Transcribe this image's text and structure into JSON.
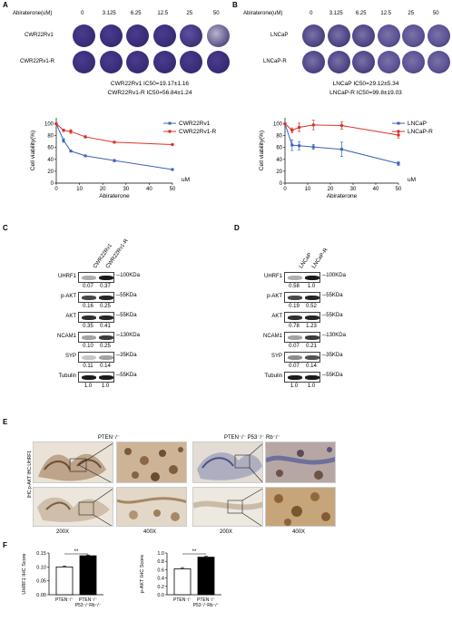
{
  "panelA": {
    "label": "A",
    "drug_header": "Abiraterone(uM)",
    "concentrations": [
      "0",
      "3.125",
      "6.25",
      "12.5",
      "25",
      "50"
    ],
    "rows": [
      "CWR22Rv1",
      "CWR22Rv1-R"
    ],
    "ic50_lines": [
      "CWR22Rv1  IC50=19.17±1.16",
      "CWR22Rv1-R IC50=56.84±1.24"
    ]
  },
  "panelB": {
    "label": "B",
    "drug_header": "Abiraterone(uM)",
    "concentrations": [
      "0",
      "3.125",
      "6.25",
      "12.5",
      "25",
      "50"
    ],
    "rows": [
      "LNCaP",
      "LNCaP-R"
    ],
    "ic50_lines": [
      "LNCaP  IC50=29.12±5.34",
      "LNCaP-R IC50=99.8±19.03"
    ]
  },
  "chart_data": [
    {
      "type": "line",
      "xlabel": "Abiraterone",
      "ylabel": "Cell viability(%)",
      "x_unit": "uM",
      "xlim": [
        0,
        50
      ],
      "ylim": [
        0,
        110
      ],
      "xticks": [
        "0",
        "10",
        "20",
        "30",
        "40",
        "50"
      ],
      "yticks": [
        "0",
        "20",
        "40",
        "60",
        "80",
        "100"
      ],
      "legend_position": "top-right",
      "series": [
        {
          "name": "CWR22Rv1",
          "color": "#3a63b8",
          "marker": "square",
          "x": [
            0,
            3.125,
            6.25,
            12.5,
            25,
            50
          ],
          "y": [
            100,
            72,
            54,
            46,
            38,
            23
          ],
          "err": [
            0,
            3,
            1,
            1,
            2,
            1
          ]
        },
        {
          "name": "CWR22Rv1-R",
          "color": "#d8322a",
          "marker": "circle",
          "x": [
            0,
            3.125,
            6.25,
            12.5,
            25,
            50
          ],
          "y": [
            100,
            89,
            87,
            78,
            69,
            65
          ],
          "err": [
            0,
            2,
            3,
            2,
            1,
            1
          ]
        }
      ]
    },
    {
      "type": "line",
      "xlabel": "Abiraterone",
      "ylabel": "Cell viability(%)",
      "x_unit": "uM",
      "xlim": [
        0,
        50
      ],
      "ylim": [
        0,
        110
      ],
      "xticks": [
        "0",
        "10",
        "20",
        "30",
        "40",
        "50"
      ],
      "yticks": [
        "0",
        "20",
        "40",
        "60",
        "80",
        "100"
      ],
      "legend_position": "top-right",
      "series": [
        {
          "name": "LNCaP",
          "color": "#3a63b8",
          "marker": "square",
          "x": [
            0,
            3.125,
            6.25,
            12.5,
            25,
            50
          ],
          "y": [
            100,
            64,
            63,
            61,
            57,
            33
          ],
          "err": [
            0,
            9,
            7,
            4,
            12,
            3
          ]
        },
        {
          "name": "LNCaP-R",
          "color": "#d8322a",
          "marker": "circle",
          "x": [
            0,
            3.125,
            6.25,
            12.5,
            25,
            50
          ],
          "y": [
            100,
            89,
            94,
            98,
            97,
            81
          ],
          "err": [
            0,
            4,
            7,
            8,
            6,
            5
          ]
        }
      ]
    },
    {
      "type": "bar",
      "ylabel": "UHRF1 IHC Score",
      "categories": [
        "PTEN⁻/⁻",
        "PTEN⁻/⁻ P53⁻/⁻Rb⁻/⁻"
      ],
      "values": [
        0.1,
        0.14
      ],
      "err": [
        0.003,
        0.003
      ],
      "ylim": [
        0,
        0.15
      ],
      "yticks": [
        "0.00",
        "0.05",
        "0.10",
        "0.15"
      ],
      "significance": "**"
    },
    {
      "type": "bar",
      "ylabel": "p-AKT IHC Score",
      "categories": [
        "PTEN⁻/⁻",
        "PTEN⁻/⁻ P53⁻/⁻Rb⁻/⁻"
      ],
      "values": [
        0.62,
        0.9
      ],
      "err": [
        0.03,
        0.02
      ],
      "ylim": [
        0,
        1.0
      ],
      "yticks": [
        "0.0",
        "0.2",
        "0.4",
        "0.6",
        "0.8",
        "1.0"
      ],
      "significance": "**"
    }
  ],
  "panelC": {
    "label": "C",
    "lanes": [
      "CWR22Rv1",
      "CWR22Rv1-R"
    ],
    "blots": [
      {
        "name": "UHRF1",
        "size": "100KDa",
        "quant": [
          "0.07",
          "0.37"
        ]
      },
      {
        "name": "p-AKT",
        "size": "55KDa",
        "quant": [
          "0.16",
          "0.25"
        ]
      },
      {
        "name": "AKT",
        "size": "55KDa",
        "quant": [
          "0.35",
          "0.41"
        ]
      },
      {
        "name": "NCAM1",
        "size": "130KDa",
        "quant": [
          "0.10",
          "0.25"
        ]
      },
      {
        "name": "SYP",
        "size": "35KDa",
        "quant": [
          "0.11",
          "0.14"
        ]
      },
      {
        "name": "Tubulin",
        "size": "55KDa",
        "quant": [
          "1.0",
          "1.0"
        ]
      }
    ]
  },
  "panelD": {
    "label": "D",
    "lanes": [
      "LNCaP",
      "LNCaP-R"
    ],
    "blots": [
      {
        "name": "UHRF1",
        "size": "100KDa",
        "quant": [
          "0.58",
          "1.0"
        ]
      },
      {
        "name": "p-AKT",
        "size": "55KDa",
        "quant": [
          "0.19",
          "0.52"
        ]
      },
      {
        "name": "AKT",
        "size": "55KDa",
        "quant": [
          "0.78",
          "1.23"
        ]
      },
      {
        "name": "NCAM1",
        "size": "130KDa",
        "quant": [
          "0.07",
          "0.21"
        ]
      },
      {
        "name": "SYP",
        "size": "35KDa",
        "quant": [
          "0.07",
          "0.14"
        ]
      },
      {
        "name": "Tubulin",
        "size": "55KDa",
        "quant": [
          "1.0",
          "1.0"
        ]
      }
    ]
  },
  "panelE": {
    "label": "E",
    "groups": [
      "PTEN⁻/⁻",
      "PTEN⁻/⁻ P53⁻/⁻ Rb⁻/⁻"
    ],
    "side_label": "IHC:p-AKT IHC:UHRF1",
    "magnifications": [
      "200X",
      "400X",
      "200X",
      "400X"
    ]
  },
  "panelF": {
    "label": "F"
  }
}
